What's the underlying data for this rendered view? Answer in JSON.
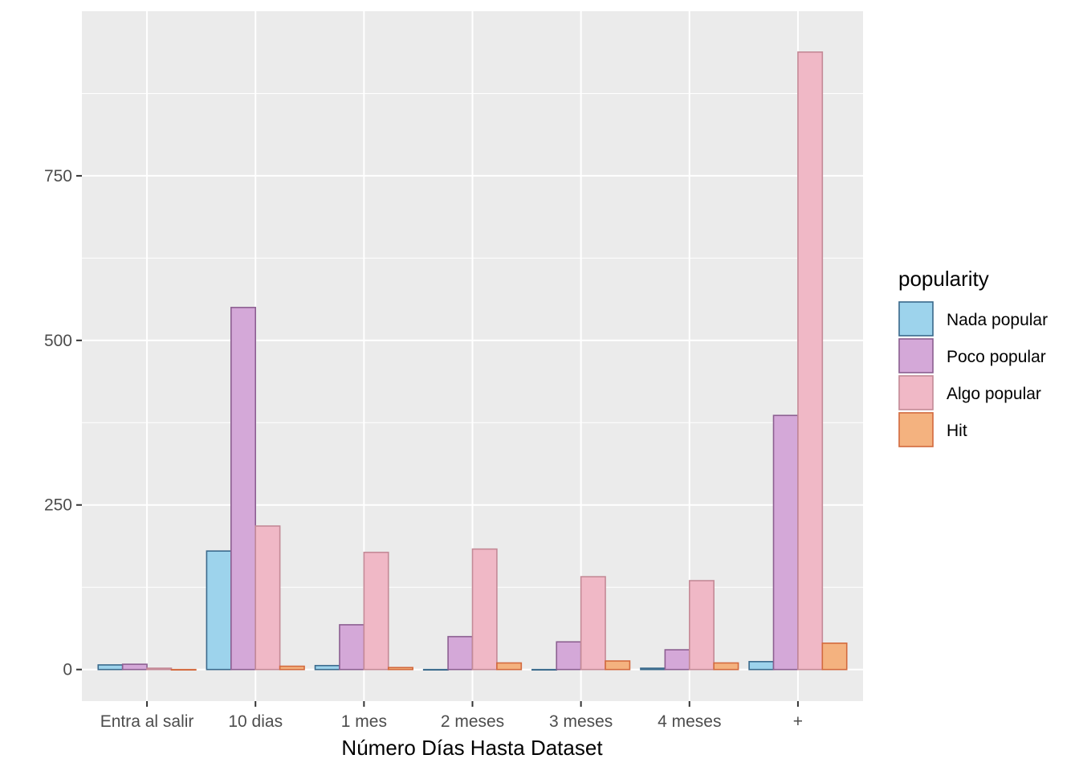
{
  "chart_data": {
    "type": "bar",
    "title": "",
    "xlabel": "Número Días Hasta Dataset",
    "ylabel": "",
    "ylim": [
      -48,
      1000
    ],
    "yticks": [
      0,
      250,
      500,
      750
    ],
    "grid": true,
    "legend_position": "right",
    "categories": [
      "Entra al salir",
      "10 dias",
      "1 mes",
      "2 meses",
      "3 meses",
      "4 meses",
      "+"
    ],
    "legend": {
      "title": "popularity"
    },
    "series": [
      {
        "name": "Nada popular",
        "fill": "#9dd3ec",
        "stroke": "#3a6a8c",
        "values": [
          7,
          180,
          6,
          0,
          0,
          2,
          12
        ]
      },
      {
        "name": "Poco popular",
        "fill": "#d4a8d8",
        "stroke": "#8c5f91",
        "values": [
          8,
          550,
          68,
          50,
          42,
          30,
          386
        ]
      },
      {
        "name": "Algo popular",
        "fill": "#f0b8c6",
        "stroke": "#c48a97",
        "values": [
          2,
          218,
          178,
          183,
          141,
          135,
          938
        ]
      },
      {
        "name": "Hit",
        "fill": "#f4b27f",
        "stroke": "#d36a3e",
        "values": [
          0,
          5,
          3,
          10,
          13,
          10,
          40
        ]
      }
    ]
  }
}
